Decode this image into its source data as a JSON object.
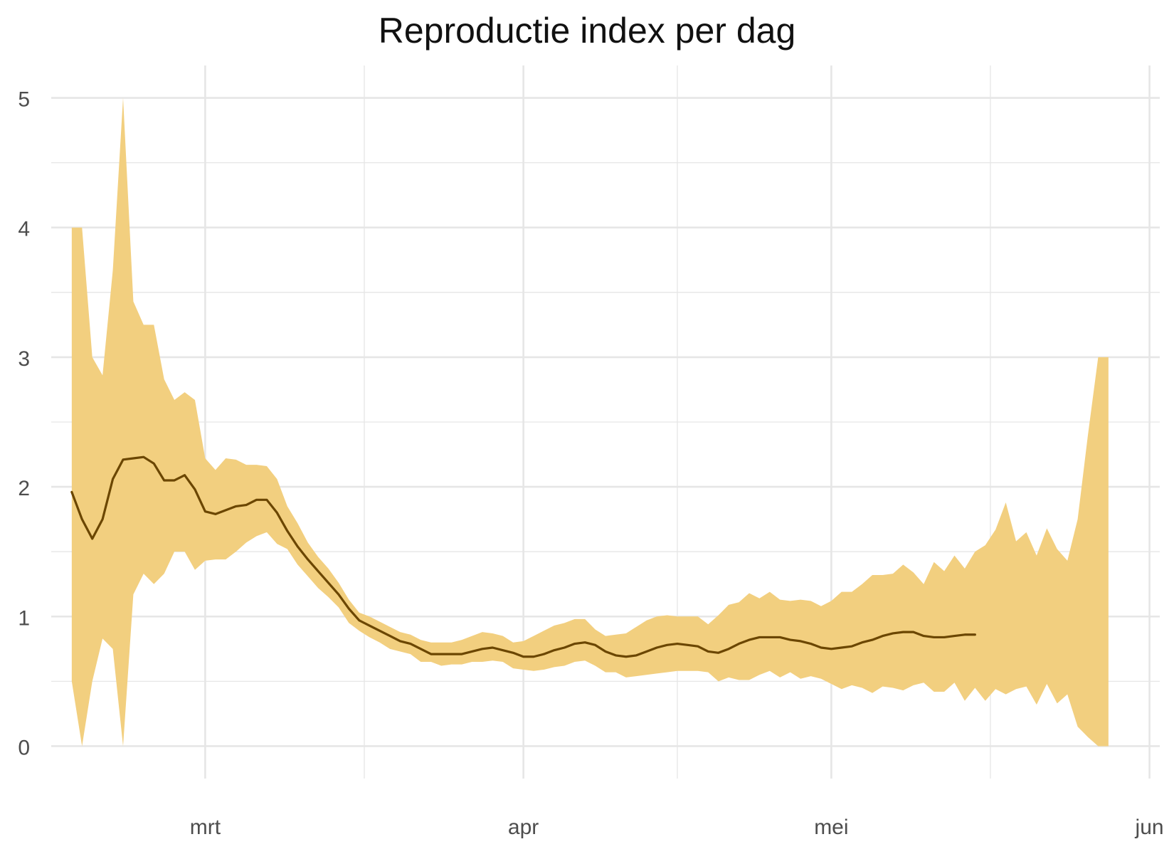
{
  "chart_data": {
    "type": "line",
    "title": "Reproductie index per dag",
    "xlabel": "",
    "ylabel": "",
    "x_axis": {
      "type": "date",
      "range": [
        "2020-02-15",
        "2020-06-02"
      ],
      "major_ticks": [
        "2020-03-01",
        "2020-04-01",
        "2020-05-01",
        "2020-06-01"
      ],
      "tick_labels": [
        "mrt",
        "apr",
        "mei",
        "jun"
      ]
    },
    "y_axis": {
      "range": [
        -0.25,
        5.25
      ],
      "major_ticks": [
        0,
        1,
        2,
        3,
        4,
        5
      ],
      "tick_labels": [
        "0",
        "1",
        "2",
        "3",
        "4",
        "5"
      ]
    },
    "grid": true,
    "legend": "none",
    "colors": {
      "ribbon": "#f2cf7f",
      "line": "#6b4600",
      "grid": "#e6e6e6",
      "tick_text": "#4d4d4d"
    },
    "series": [
      {
        "kind": "ribbon",
        "x": [
          "2020-02-17",
          "2020-02-18",
          "2020-02-19",
          "2020-02-20",
          "2020-02-21",
          "2020-02-22",
          "2020-02-23",
          "2020-02-24",
          "2020-02-25",
          "2020-02-26",
          "2020-02-27",
          "2020-02-28",
          "2020-02-29",
          "2020-03-01",
          "2020-03-02",
          "2020-03-03",
          "2020-03-04",
          "2020-03-05",
          "2020-03-06",
          "2020-03-07",
          "2020-03-08",
          "2020-03-09",
          "2020-03-10",
          "2020-03-11",
          "2020-03-12",
          "2020-03-13",
          "2020-03-14",
          "2020-03-15",
          "2020-03-16",
          "2020-03-17",
          "2020-03-18",
          "2020-03-19",
          "2020-03-20",
          "2020-03-21",
          "2020-03-22",
          "2020-03-23",
          "2020-03-24",
          "2020-03-25",
          "2020-03-26",
          "2020-03-27",
          "2020-03-28",
          "2020-03-29",
          "2020-03-30",
          "2020-03-31",
          "2020-04-01",
          "2020-04-02",
          "2020-04-03",
          "2020-04-04",
          "2020-04-05",
          "2020-04-06",
          "2020-04-07",
          "2020-04-08",
          "2020-04-09",
          "2020-04-10",
          "2020-04-11",
          "2020-04-12",
          "2020-04-13",
          "2020-04-14",
          "2020-04-15",
          "2020-04-16",
          "2020-04-17",
          "2020-04-18",
          "2020-04-19",
          "2020-04-20",
          "2020-04-21",
          "2020-04-22",
          "2020-04-23",
          "2020-04-24",
          "2020-04-25",
          "2020-04-26",
          "2020-04-27",
          "2020-04-28",
          "2020-04-29",
          "2020-04-30",
          "2020-05-01",
          "2020-05-02",
          "2020-05-03",
          "2020-05-04",
          "2020-05-05",
          "2020-05-06",
          "2020-05-07",
          "2020-05-08",
          "2020-05-09",
          "2020-05-10",
          "2020-05-11",
          "2020-05-12",
          "2020-05-13",
          "2020-05-14",
          "2020-05-15",
          "2020-05-16",
          "2020-05-17",
          "2020-05-18",
          "2020-05-19",
          "2020-05-20",
          "2020-05-21",
          "2020-05-22",
          "2020-05-23",
          "2020-05-24",
          "2020-05-25",
          "2020-05-26",
          "2020-05-27",
          "2020-05-28"
        ],
        "lower": [
          0.5,
          0.0,
          0.5,
          0.83,
          0.75,
          0.0,
          1.17,
          1.33,
          1.25,
          1.33,
          1.5,
          1.5,
          1.36,
          1.43,
          1.44,
          1.44,
          1.5,
          1.57,
          1.62,
          1.65,
          1.56,
          1.52,
          1.4,
          1.31,
          1.22,
          1.15,
          1.07,
          0.95,
          0.89,
          0.84,
          0.8,
          0.75,
          0.73,
          0.71,
          0.65,
          0.65,
          0.62,
          0.63,
          0.63,
          0.65,
          0.65,
          0.66,
          0.65,
          0.6,
          0.59,
          0.58,
          0.59,
          0.61,
          0.62,
          0.65,
          0.66,
          0.62,
          0.57,
          0.57,
          0.53,
          0.54,
          0.55,
          0.56,
          0.57,
          0.58,
          0.58,
          0.58,
          0.57,
          0.5,
          0.53,
          0.51,
          0.51,
          0.55,
          0.58,
          0.53,
          0.57,
          0.52,
          0.54,
          0.52,
          0.48,
          0.44,
          0.47,
          0.45,
          0.41,
          0.46,
          0.45,
          0.43,
          0.47,
          0.49,
          0.42,
          0.42,
          0.49,
          0.35,
          0.45,
          0.35,
          0.44,
          0.4,
          0.44,
          0.46,
          0.32,
          0.48,
          0.33,
          0.4,
          0.15,
          0.07,
          0.0,
          0.0
        ],
        "upper": [
          4.0,
          4.0,
          3.0,
          2.86,
          3.67,
          5.0,
          3.43,
          3.25,
          3.25,
          2.83,
          2.67,
          2.73,
          2.67,
          2.22,
          2.13,
          2.22,
          2.21,
          2.17,
          2.17,
          2.16,
          2.06,
          1.85,
          1.72,
          1.57,
          1.46,
          1.37,
          1.26,
          1.13,
          1.03,
          1.0,
          0.96,
          0.92,
          0.88,
          0.86,
          0.82,
          0.8,
          0.8,
          0.8,
          0.82,
          0.85,
          0.88,
          0.87,
          0.85,
          0.8,
          0.81,
          0.85,
          0.89,
          0.93,
          0.95,
          0.98,
          0.98,
          0.9,
          0.85,
          0.86,
          0.87,
          0.92,
          0.97,
          1.0,
          1.01,
          1.0,
          1.0,
          1.0,
          0.94,
          1.01,
          1.09,
          1.11,
          1.18,
          1.14,
          1.19,
          1.13,
          1.12,
          1.13,
          1.12,
          1.08,
          1.12,
          1.19,
          1.19,
          1.25,
          1.32,
          1.32,
          1.33,
          1.4,
          1.34,
          1.25,
          1.42,
          1.35,
          1.47,
          1.37,
          1.5,
          1.55,
          1.67,
          1.88,
          1.58,
          1.65,
          1.47,
          1.68,
          1.52,
          1.43,
          1.75,
          2.4,
          3.0,
          3.0
        ]
      },
      {
        "kind": "line",
        "x": [
          "2020-02-17",
          "2020-02-18",
          "2020-02-19",
          "2020-02-20",
          "2020-02-21",
          "2020-02-22",
          "2020-02-23",
          "2020-02-24",
          "2020-02-25",
          "2020-02-26",
          "2020-02-27",
          "2020-02-28",
          "2020-02-29",
          "2020-03-01",
          "2020-03-02",
          "2020-03-03",
          "2020-03-04",
          "2020-03-05",
          "2020-03-06",
          "2020-03-07",
          "2020-03-08",
          "2020-03-09",
          "2020-03-10",
          "2020-03-11",
          "2020-03-12",
          "2020-03-13",
          "2020-03-14",
          "2020-03-15",
          "2020-03-16",
          "2020-03-17",
          "2020-03-18",
          "2020-03-19",
          "2020-03-20",
          "2020-03-21",
          "2020-03-22",
          "2020-03-23",
          "2020-03-24",
          "2020-03-25",
          "2020-03-26",
          "2020-03-27",
          "2020-03-28",
          "2020-03-29",
          "2020-03-30",
          "2020-03-31",
          "2020-04-01",
          "2020-04-02",
          "2020-04-03",
          "2020-04-04",
          "2020-04-05",
          "2020-04-06",
          "2020-04-07",
          "2020-04-08",
          "2020-04-09",
          "2020-04-10",
          "2020-04-11",
          "2020-04-12",
          "2020-04-13",
          "2020-04-14",
          "2020-04-15",
          "2020-04-16",
          "2020-04-17",
          "2020-04-18",
          "2020-04-19",
          "2020-04-20",
          "2020-04-21",
          "2020-04-22",
          "2020-04-23",
          "2020-04-24",
          "2020-04-25",
          "2020-04-26",
          "2020-04-27",
          "2020-04-28",
          "2020-04-29",
          "2020-04-30",
          "2020-05-01",
          "2020-05-02",
          "2020-05-03",
          "2020-05-04",
          "2020-05-05",
          "2020-05-06",
          "2020-05-07",
          "2020-05-08",
          "2020-05-09",
          "2020-05-10",
          "2020-05-11",
          "2020-05-12",
          "2020-05-13",
          "2020-05-14",
          "2020-05-15"
        ],
        "y": [
          1.96,
          1.75,
          1.6,
          1.75,
          2.06,
          2.21,
          2.22,
          2.23,
          2.18,
          2.05,
          2.05,
          2.09,
          1.98,
          1.81,
          1.79,
          1.82,
          1.85,
          1.86,
          1.9,
          1.9,
          1.8,
          1.66,
          1.54,
          1.44,
          1.35,
          1.26,
          1.17,
          1.06,
          0.97,
          0.93,
          0.89,
          0.85,
          0.81,
          0.79,
          0.75,
          0.71,
          0.71,
          0.71,
          0.71,
          0.73,
          0.75,
          0.76,
          0.74,
          0.72,
          0.69,
          0.69,
          0.71,
          0.74,
          0.76,
          0.79,
          0.8,
          0.78,
          0.73,
          0.7,
          0.69,
          0.7,
          0.73,
          0.76,
          0.78,
          0.79,
          0.78,
          0.77,
          0.73,
          0.72,
          0.75,
          0.79,
          0.82,
          0.84,
          0.84,
          0.84,
          0.82,
          0.81,
          0.79,
          0.76,
          0.75,
          0.76,
          0.77,
          0.8,
          0.82,
          0.85,
          0.87,
          0.88,
          0.88,
          0.85,
          0.84,
          0.84,
          0.85,
          0.86,
          0.86
        ]
      }
    ]
  }
}
